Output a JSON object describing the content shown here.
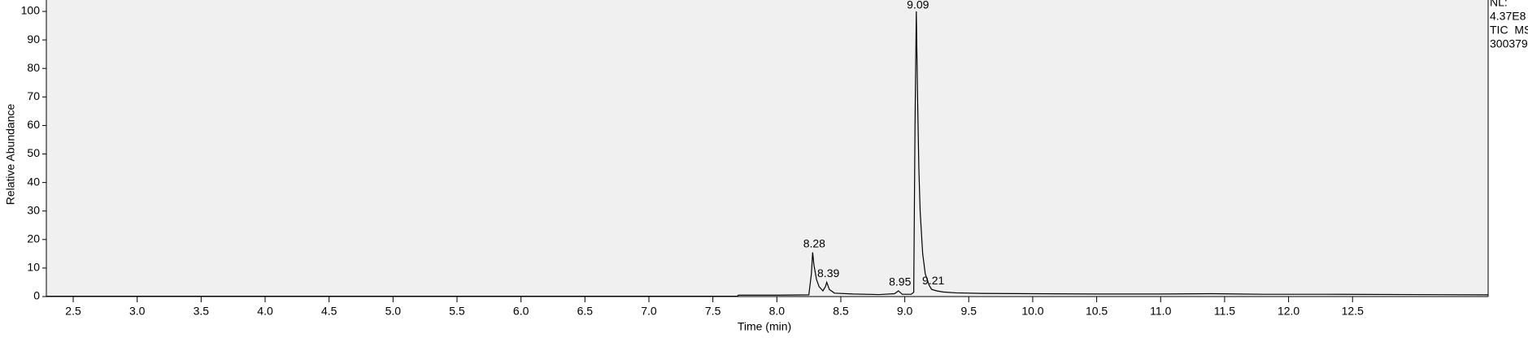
{
  "chart_data": {
    "type": "line",
    "x_label": "Time (min)",
    "y_label": "Relative Abundance",
    "info": [
      "NL:",
      "4.37E8",
      "TIC  MS",
      "300379"
    ],
    "xlim": [
      2.29,
      13.56
    ],
    "ylim": [
      0,
      104
    ],
    "xticks": [
      2.5,
      {
        "value": 3,
        "label": "3.0"
      },
      3.5,
      {
        "value": 4,
        "label": "4.0"
      },
      4.5,
      {
        "value": 5,
        "label": "5.0"
      },
      5.5,
      {
        "value": 6,
        "label": "6.0"
      },
      6.5,
      {
        "value": 7,
        "label": "7.0"
      },
      7.5,
      {
        "value": 8,
        "label": "8.0"
      },
      8.5,
      {
        "value": 9,
        "label": "9.0"
      },
      9.5,
      {
        "value": 10,
        "label": "10.0"
      },
      10.5,
      {
        "value": 11,
        "label": "11.0"
      },
      11.5,
      {
        "value": 12,
        "label": "12.0"
      },
      12.5
    ],
    "yticks": [
      0,
      10,
      20,
      30,
      40,
      50,
      60,
      70,
      80,
      90,
      100
    ],
    "color": "#000000",
    "x": [
      2.29,
      3.0,
      4.0,
      5.0,
      6.0,
      7.0,
      7.69,
      7.7,
      8.0,
      8.25,
      8.27,
      8.28,
      8.29,
      8.31,
      8.33,
      8.36,
      8.38,
      8.39,
      8.41,
      8.45,
      8.6,
      8.8,
      8.92,
      8.95,
      8.98,
      9.05,
      9.07,
      9.08,
      9.09,
      9.1,
      9.11,
      9.12,
      9.14,
      9.16,
      9.19,
      9.21,
      9.25,
      9.3,
      9.4,
      9.6,
      10.0,
      10.5,
      11.0,
      11.4,
      11.8,
      12.3,
      13.0,
      13.56
    ],
    "values": [
      0.1,
      0.1,
      0.1,
      0.1,
      0.1,
      0.1,
      0.1,
      0.5,
      0.5,
      0.6,
      8,
      15.5,
      11,
      6,
      3.5,
      2,
      3.5,
      5,
      2.5,
      1.2,
      0.9,
      0.7,
      1,
      2,
      0.8,
      0.8,
      1.5,
      60,
      100,
      70,
      45,
      30,
      15,
      8,
      4,
      2.5,
      2,
      1.6,
      1.3,
      1.1,
      1,
      0.9,
      0.9,
      1,
      0.8,
      0.8,
      0.7,
      0.6
    ],
    "annotations": [
      {
        "x": 8.28,
        "y": 15.5
      },
      {
        "x": 8.39,
        "y": 5
      },
      {
        "x": 8.95,
        "y": 2
      },
      {
        "x": 9.09,
        "y": 100
      },
      {
        "x": 9.21,
        "y": 2.5
      }
    ]
  }
}
